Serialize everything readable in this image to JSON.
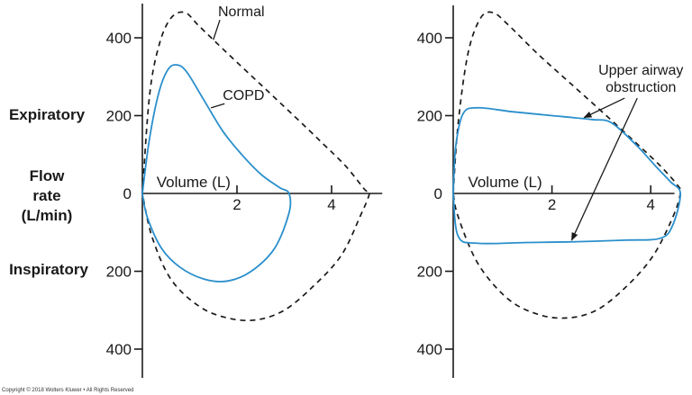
{
  "side_labels": {
    "expiratory": "Expiratory",
    "flow_rate_line1": "Flow",
    "flow_rate_line2": "rate",
    "flow_rate_line3": "(L/min)",
    "inspiratory": "Inspiratory"
  },
  "copyright": "Copyright © 2018 Wolters Kluwer • All Rights Reserved",
  "colors": {
    "normal": "#1a1a1a",
    "patient": "#2a8fcc",
    "axis": "#1a1a1a"
  },
  "chart_data": [
    {
      "type": "line",
      "title": "",
      "xlabel": "Volume (L)",
      "ylabel": "Flow rate (L/min)",
      "xlim": [
        0,
        5.3
      ],
      "ylim": [
        -450,
        480
      ],
      "x_ticks": [
        2,
        4
      ],
      "y_ticks": [
        {
          "value": 400,
          "label": "400"
        },
        {
          "value": 200,
          "label": "200"
        },
        {
          "value": 0,
          "label": "0"
        },
        {
          "value": -200,
          "label": "200"
        },
        {
          "value": -400,
          "label": "400"
        }
      ],
      "series": [
        {
          "name": "Normal",
          "style": "dashed",
          "color": "#1a1a1a",
          "points": [
            [
              0,
              0
            ],
            [
              0.15,
              250
            ],
            [
              0.35,
              380
            ],
            [
              0.6,
              450
            ],
            [
              0.9,
              465
            ],
            [
              1.2,
              430
            ],
            [
              1.8,
              360
            ],
            [
              2.5,
              280
            ],
            [
              3.2,
              200
            ],
            [
              3.8,
              130
            ],
            [
              4.3,
              70
            ],
            [
              4.7,
              10
            ],
            [
              4.8,
              0
            ],
            [
              4.6,
              -60
            ],
            [
              4.2,
              -160
            ],
            [
              3.6,
              -240
            ],
            [
              3,
              -300
            ],
            [
              2.4,
              -325
            ],
            [
              1.8,
              -320
            ],
            [
              1.2,
              -290
            ],
            [
              0.6,
              -220
            ],
            [
              0.2,
              -110
            ],
            [
              0,
              0
            ]
          ]
        },
        {
          "name": "COPD",
          "style": "solid",
          "color": "#2a8fcc",
          "points": [
            [
              0,
              0
            ],
            [
              0.15,
              140
            ],
            [
              0.35,
              260
            ],
            [
              0.55,
              320
            ],
            [
              0.75,
              330
            ],
            [
              0.95,
              310
            ],
            [
              1.3,
              240
            ],
            [
              1.7,
              160
            ],
            [
              2.1,
              100
            ],
            [
              2.5,
              50
            ],
            [
              2.9,
              15
            ],
            [
              3.1,
              0
            ],
            [
              3.1,
              -50
            ],
            [
              2.8,
              -140
            ],
            [
              2.3,
              -200
            ],
            [
              1.8,
              -225
            ],
            [
              1.3,
              -220
            ],
            [
              0.8,
              -190
            ],
            [
              0.4,
              -140
            ],
            [
              0.1,
              -60
            ],
            [
              0,
              0
            ]
          ]
        }
      ],
      "annotations": [
        {
          "text": "Normal",
          "x": 1.6,
          "y": 455,
          "arrow_to": [
            1.5,
            395
          ]
        },
        {
          "text": "COPD",
          "x": 1.7,
          "y": 240,
          "arrow_to": [
            1.45,
            220
          ]
        }
      ]
    },
    {
      "type": "line",
      "title": "",
      "xlabel": "Volume (L)",
      "ylabel": "",
      "xlim": [
        0,
        4.7
      ],
      "ylim": [
        -450,
        480
      ],
      "x_ticks": [
        2,
        4
      ],
      "y_ticks": [
        {
          "value": 400,
          "label": "400"
        },
        {
          "value": 200,
          "label": "200"
        },
        {
          "value": 0,
          "label": "0"
        },
        {
          "value": -200,
          "label": "200"
        },
        {
          "value": -400,
          "label": "400"
        }
      ],
      "series": [
        {
          "name": "Normal",
          "style": "dashed",
          "color": "#1a1a1a",
          "points": [
            [
              0,
              0
            ],
            [
              0.1,
              180
            ],
            [
              0.3,
              360
            ],
            [
              0.55,
              450
            ],
            [
              0.8,
              465
            ],
            [
              1.1,
              435
            ],
            [
              1.7,
              360
            ],
            [
              2.4,
              280
            ],
            [
              3.1,
              200
            ],
            [
              3.7,
              130
            ],
            [
              4.2,
              70
            ],
            [
              4.55,
              20
            ],
            [
              4.6,
              0
            ],
            [
              4.45,
              -60
            ],
            [
              4.05,
              -160
            ],
            [
              3.5,
              -240
            ],
            [
              2.9,
              -300
            ],
            [
              2.3,
              -320
            ],
            [
              1.7,
              -310
            ],
            [
              1.1,
              -270
            ],
            [
              0.5,
              -180
            ],
            [
              0.1,
              -60
            ],
            [
              0,
              0
            ]
          ]
        },
        {
          "name": "Upper airway obstruction",
          "style": "solid",
          "color": "#2a8fcc",
          "points": [
            [
              0,
              0
            ],
            [
              0.05,
              120
            ],
            [
              0.2,
              205
            ],
            [
              0.5,
              220
            ],
            [
              1.2,
              210
            ],
            [
              2,
              200
            ],
            [
              2.8,
              190
            ],
            [
              3.2,
              182
            ],
            [
              3.7,
              125
            ],
            [
              4.1,
              70
            ],
            [
              4.4,
              30
            ],
            [
              4.6,
              0
            ],
            [
              4.45,
              -80
            ],
            [
              4.2,
              -115
            ],
            [
              3.5,
              -120
            ],
            [
              2.5,
              -124
            ],
            [
              1.5,
              -126
            ],
            [
              0.5,
              -128
            ],
            [
              0.1,
              -110
            ],
            [
              0,
              0
            ]
          ]
        }
      ],
      "annotations": [
        {
          "text": "Upper airway obstruction",
          "line1": "Upper airway",
          "line2": "obstruction",
          "x": 3.8,
          "y": 305,
          "arrow_to": [
            [
              2.65,
              195
            ],
            [
              2.4,
              -120
            ]
          ]
        }
      ]
    }
  ]
}
